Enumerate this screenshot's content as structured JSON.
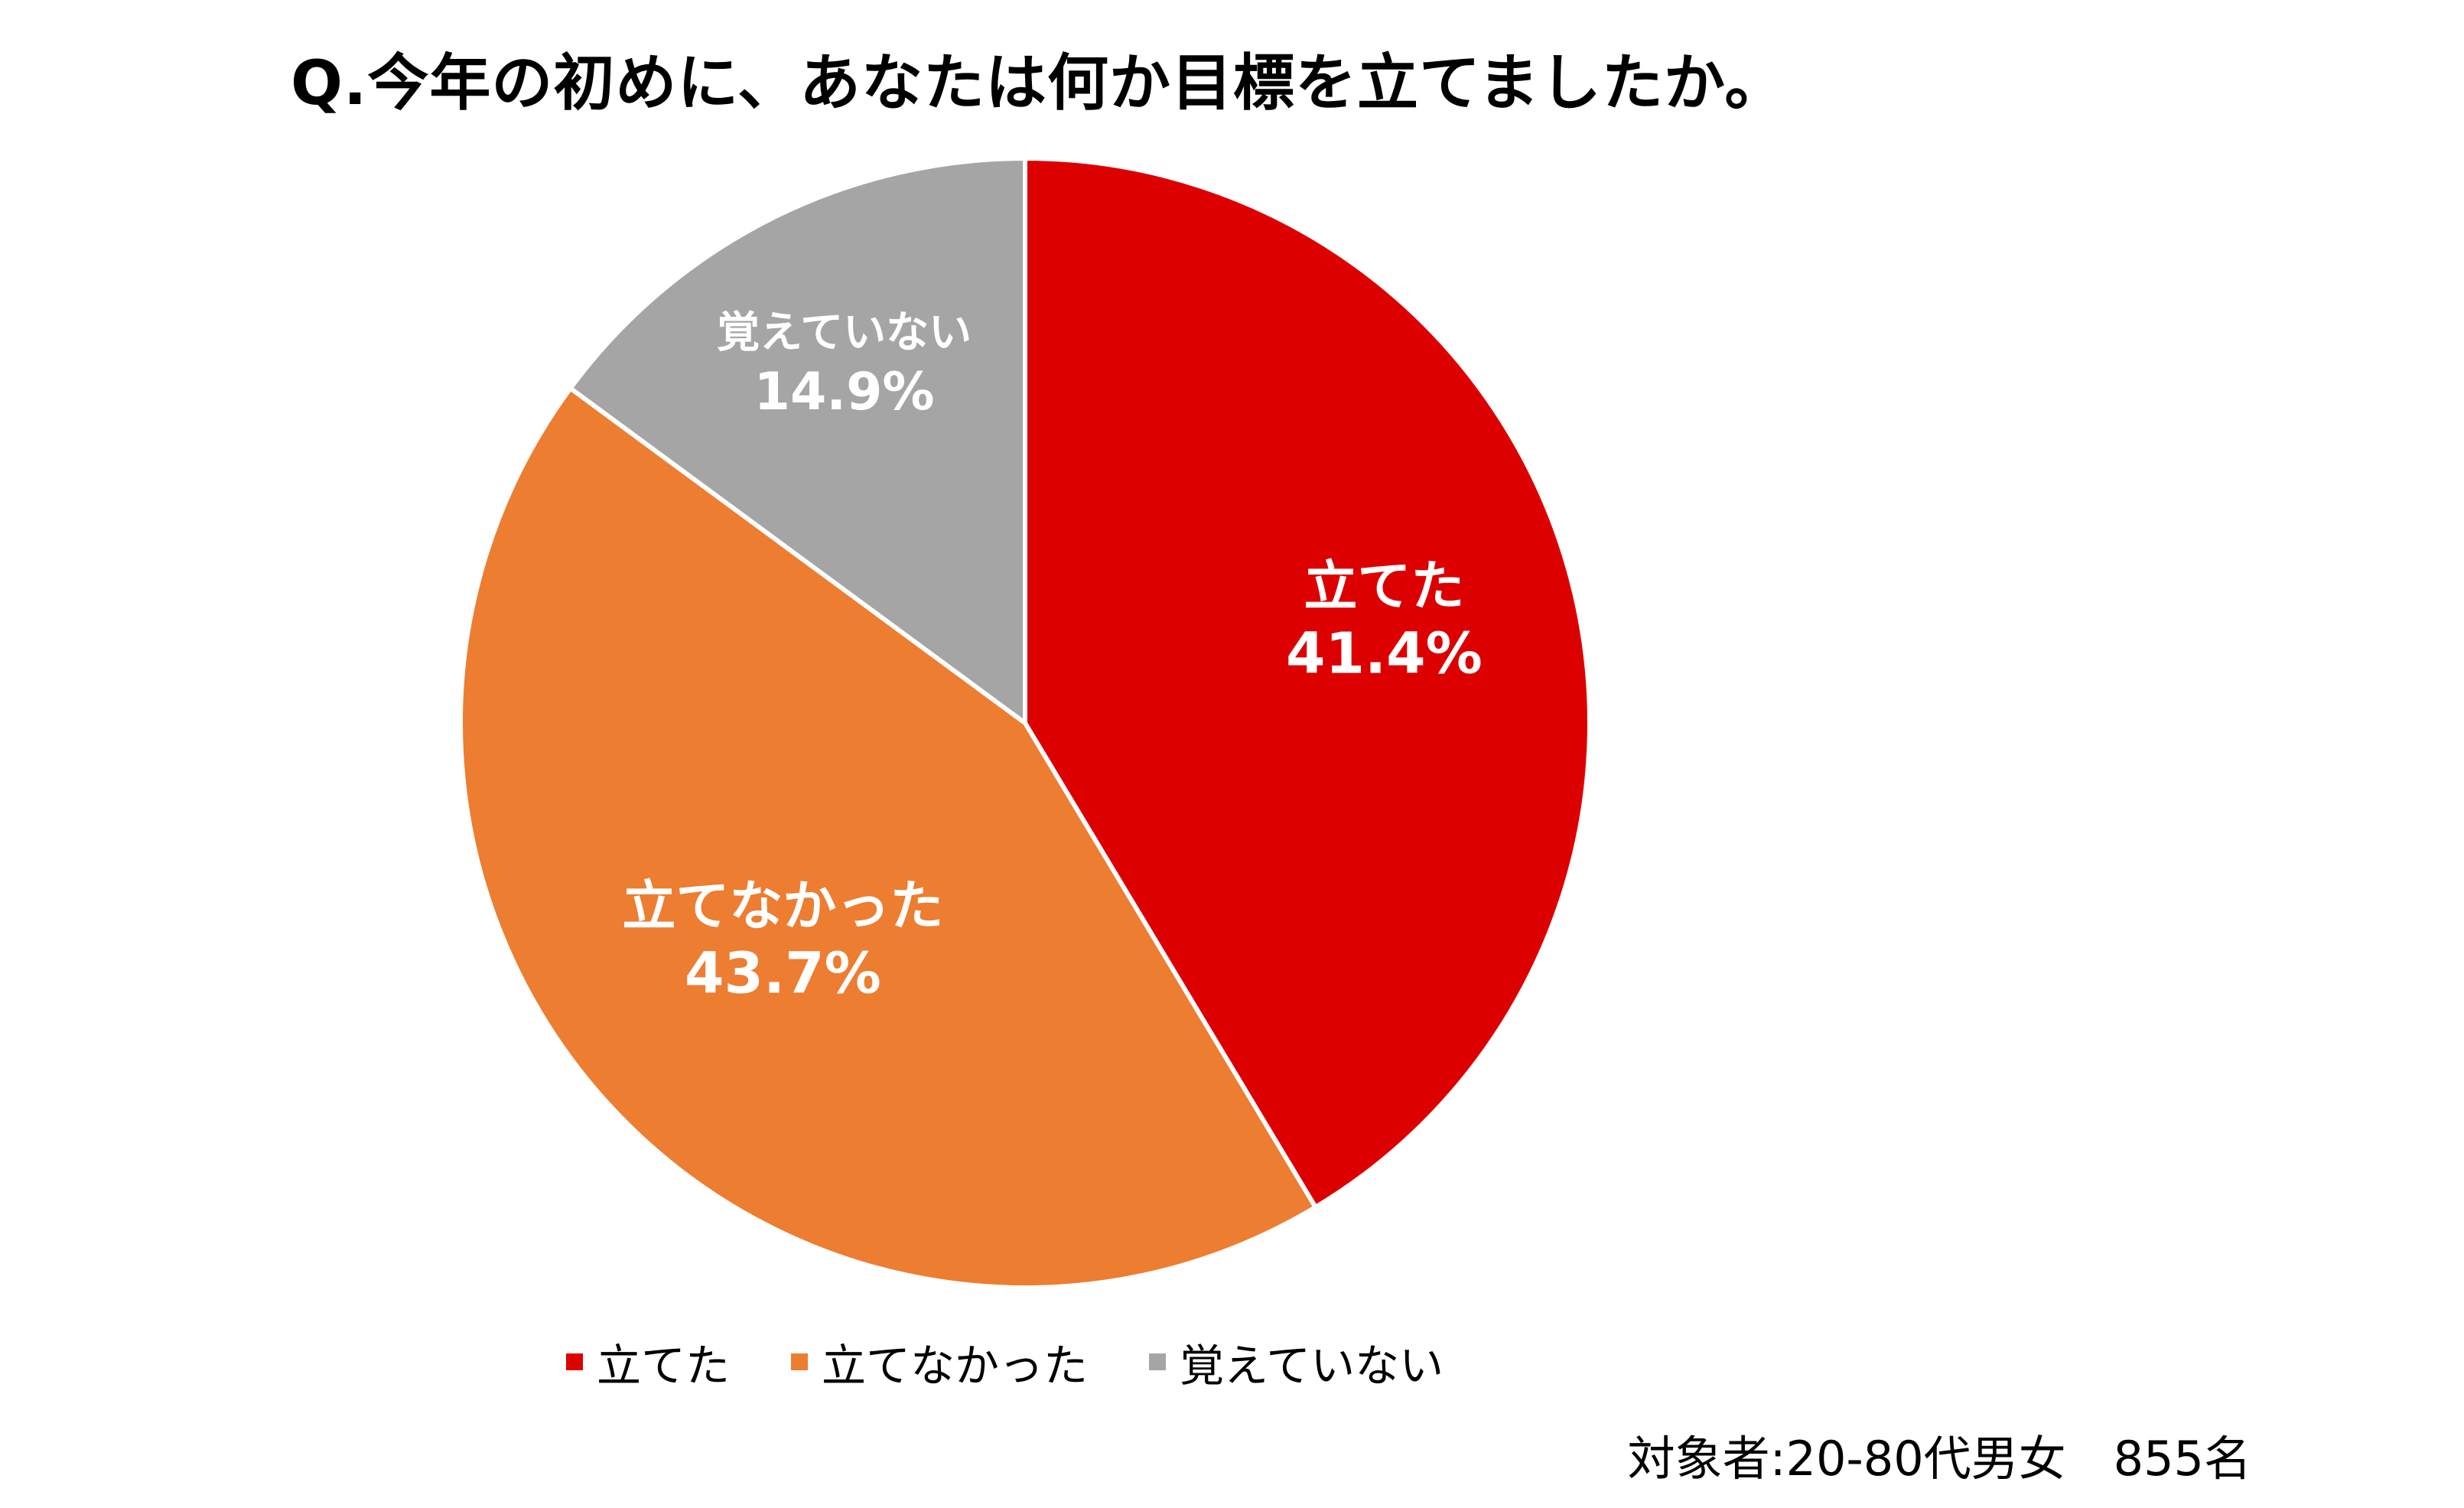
{
  "title": "Q.今年の初めに、あなたは何か目標を立てましたか。",
  "footnote": "対象者:20-80代男女　855名",
  "colors": {
    "slice_1": "#DD0000",
    "slice_2": "#ED7D31",
    "slice_3": "#A5A5A5"
  },
  "chart_data": {
    "type": "pie",
    "title": "Q.今年の初めに、あなたは何か目標を立てましたか。",
    "categories": [
      "立てた",
      "立てなかった",
      "覚えていない"
    ],
    "values": [
      41.4,
      43.7,
      14.9
    ],
    "value_labels": [
      "41.4%",
      "43.7%",
      "14.9%"
    ],
    "start_angle": "12 o'clock",
    "direction": "clockwise",
    "legend": "bottom"
  }
}
